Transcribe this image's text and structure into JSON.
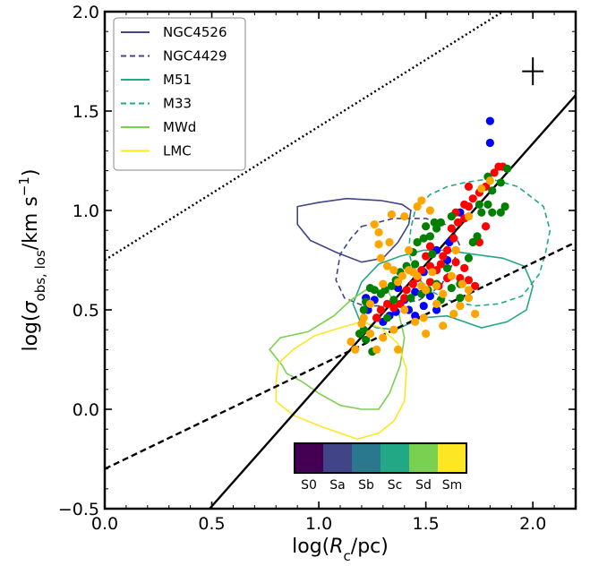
{
  "chart_data": {
    "type": "scatter",
    "xlabel_parts": [
      "log(",
      "R",
      "c",
      "/pc)"
    ],
    "ylabel_parts": [
      "log(",
      "σ",
      "obs, los",
      "/km s",
      "−1",
      ")"
    ],
    "xlim": [
      0.0,
      2.2
    ],
    "ylim": [
      -0.5,
      2.0
    ],
    "xticks": [
      0.0,
      0.5,
      1.0,
      1.5,
      2.0
    ],
    "xtick_labels": [
      "0.0",
      "0.5",
      "1.0",
      "1.5",
      "2.0"
    ],
    "yticks": [
      -0.5,
      0.0,
      0.5,
      1.0,
      1.5,
      2.0
    ],
    "ytick_labels": [
      "−0.5",
      "0.0",
      "0.5",
      "1.0",
      "1.5",
      "2.0"
    ],
    "grid": false,
    "legend_position": "top-left",
    "lines": [
      {
        "style": "solid",
        "points": [
          [
            0.49,
            -0.5
          ],
          [
            2.2,
            1.58
          ]
        ]
      },
      {
        "style": "dashed",
        "points": [
          [
            0.0,
            -0.3
          ],
          [
            2.2,
            0.84
          ]
        ]
      },
      {
        "style": "dotted",
        "points": [
          [
            0.0,
            0.75
          ],
          [
            1.86,
            2.0
          ]
        ]
      }
    ],
    "error_cross": {
      "x": 2.0,
      "y": 1.7,
      "dx": 0.05,
      "dy": 0.07
    },
    "contours": [
      {
        "name": "NGC4526",
        "color": "#414487",
        "dash": "solid",
        "points": [
          [
            0.9,
            1.02
          ],
          [
            1.0,
            1.04
          ],
          [
            1.13,
            1.06
          ],
          [
            1.29,
            1.05
          ],
          [
            1.39,
            1.03
          ],
          [
            1.43,
            1.0
          ],
          [
            1.42,
            0.93
          ],
          [
            1.37,
            0.84
          ],
          [
            1.3,
            0.76
          ],
          [
            1.2,
            0.74
          ],
          [
            1.08,
            0.79
          ],
          [
            0.96,
            0.85
          ],
          [
            0.9,
            0.93
          ],
          [
            0.9,
            1.0
          ]
        ]
      },
      {
        "name": "NGC4429",
        "color": "#414487",
        "dash": "dashed",
        "points": [
          [
            1.2,
            0.92
          ],
          [
            1.35,
            0.96
          ],
          [
            1.5,
            0.96
          ],
          [
            1.62,
            0.92
          ],
          [
            1.66,
            0.82
          ],
          [
            1.62,
            0.72
          ],
          [
            1.57,
            0.62
          ],
          [
            1.47,
            0.55
          ],
          [
            1.33,
            0.52
          ],
          [
            1.21,
            0.52
          ],
          [
            1.12,
            0.56
          ],
          [
            1.08,
            0.65
          ],
          [
            1.1,
            0.78
          ],
          [
            1.15,
            0.86
          ],
          [
            1.2,
            0.92
          ]
        ]
      },
      {
        "name": "M51",
        "color": "#22a884",
        "dash": "solid",
        "points": [
          [
            1.28,
            0.73
          ],
          [
            1.38,
            0.77
          ],
          [
            1.49,
            0.8
          ],
          [
            1.59,
            0.8
          ],
          [
            1.72,
            0.78
          ],
          [
            1.86,
            0.76
          ],
          [
            1.96,
            0.72
          ],
          [
            2.0,
            0.62
          ],
          [
            1.97,
            0.5
          ],
          [
            1.88,
            0.44
          ],
          [
            1.76,
            0.41
          ],
          [
            1.6,
            0.47
          ],
          [
            1.48,
            0.46
          ],
          [
            1.36,
            0.4
          ],
          [
            1.27,
            0.41
          ],
          [
            1.19,
            0.45
          ],
          [
            1.16,
            0.53
          ],
          [
            1.2,
            0.64
          ],
          [
            1.28,
            0.73
          ]
        ]
      },
      {
        "name": "M33",
        "color": "#22a884",
        "dash": "dashed",
        "points": [
          [
            1.45,
            1.0
          ],
          [
            1.52,
            1.08
          ],
          [
            1.6,
            1.12
          ],
          [
            1.68,
            1.14
          ],
          [
            1.8,
            1.16
          ],
          [
            1.93,
            1.12
          ],
          [
            2.05,
            1.02
          ],
          [
            2.08,
            0.9
          ],
          [
            2.06,
            0.79
          ],
          [
            2.03,
            0.68
          ],
          [
            1.95,
            0.57
          ],
          [
            1.84,
            0.53
          ],
          [
            1.73,
            0.52
          ],
          [
            1.6,
            0.55
          ],
          [
            1.5,
            0.61
          ],
          [
            1.44,
            0.7
          ],
          [
            1.42,
            0.8
          ],
          [
            1.43,
            0.91
          ],
          [
            1.45,
            1.0
          ]
        ]
      },
      {
        "name": "MWd",
        "color": "#7ad151",
        "dash": "solid",
        "points": [
          [
            0.83,
            0.22
          ],
          [
            0.77,
            0.3
          ],
          [
            0.82,
            0.36
          ],
          [
            0.95,
            0.39
          ],
          [
            1.07,
            0.47
          ],
          [
            1.15,
            0.55
          ],
          [
            1.22,
            0.6
          ],
          [
            1.32,
            0.6
          ],
          [
            1.37,
            0.5
          ],
          [
            1.4,
            0.36
          ],
          [
            1.38,
            0.22
          ],
          [
            1.33,
            0.08
          ],
          [
            1.28,
            0.0
          ],
          [
            1.2,
            0.0
          ],
          [
            1.1,
            0.02
          ],
          [
            1.0,
            0.08
          ],
          [
            0.92,
            0.14
          ],
          [
            0.85,
            0.18
          ],
          [
            0.83,
            0.22
          ]
        ]
      },
      {
        "name": "LMC",
        "color": "#fde725",
        "dash": "solid",
        "points": [
          [
            0.8,
            0.13
          ],
          [
            0.81,
            0.23
          ],
          [
            0.88,
            0.3
          ],
          [
            0.98,
            0.37
          ],
          [
            1.1,
            0.41
          ],
          [
            1.2,
            0.44
          ],
          [
            1.29,
            0.41
          ],
          [
            1.37,
            0.33
          ],
          [
            1.41,
            0.2
          ],
          [
            1.4,
            0.04
          ],
          [
            1.35,
            -0.06
          ],
          [
            1.28,
            -0.12
          ],
          [
            1.18,
            -0.15
          ],
          [
            1.02,
            -0.09
          ],
          [
            0.88,
            -0.03
          ],
          [
            0.8,
            0.04
          ],
          [
            0.8,
            0.13
          ]
        ]
      }
    ],
    "series": [
      {
        "name": "S0",
        "color": "#440154",
        "points": []
      },
      {
        "name": "Sa",
        "color": "#0000ff",
        "points": [
          [
            1.8,
            1.45
          ],
          [
            1.8,
            1.34
          ],
          [
            1.66,
            0.99
          ],
          [
            1.61,
            0.84
          ],
          [
            1.6,
            0.75
          ],
          [
            1.55,
            0.8
          ],
          [
            1.49,
            0.69
          ],
          [
            1.45,
            0.59
          ],
          [
            1.52,
            0.57
          ],
          [
            1.49,
            0.52
          ],
          [
            1.45,
            0.47
          ],
          [
            1.42,
            0.5
          ],
          [
            1.4,
            0.55
          ],
          [
            1.36,
            0.49
          ],
          [
            1.33,
            0.47
          ],
          [
            1.3,
            0.44
          ],
          [
            1.27,
            0.46
          ],
          [
            1.22,
            0.56
          ],
          [
            1.23,
            0.5
          ],
          [
            1.26,
            0.55
          ],
          [
            1.55,
            0.5
          ],
          [
            1.37,
            0.61
          ]
        ]
      },
      {
        "name": "Sb",
        "color": "#ff0000",
        "points": [
          [
            1.84,
            1.22
          ],
          [
            1.86,
            1.22
          ],
          [
            1.82,
            1.19
          ],
          [
            1.78,
            1.12
          ],
          [
            1.75,
            1.09
          ],
          [
            1.72,
            1.06
          ],
          [
            1.7,
            1.02
          ],
          [
            1.68,
            0.96
          ],
          [
            1.65,
            0.94
          ],
          [
            1.62,
            0.91
          ],
          [
            1.63,
            0.86
          ],
          [
            1.6,
            0.8
          ],
          [
            1.58,
            0.77
          ],
          [
            1.57,
            0.73
          ],
          [
            1.55,
            0.7
          ],
          [
            1.52,
            0.72
          ],
          [
            1.48,
            0.7
          ],
          [
            1.46,
            0.66
          ],
          [
            1.44,
            0.63
          ],
          [
            1.41,
            0.6
          ],
          [
            1.4,
            0.56
          ],
          [
            1.38,
            0.53
          ],
          [
            1.35,
            0.51
          ],
          [
            1.32,
            0.53
          ],
          [
            1.29,
            0.5
          ],
          [
            1.27,
            0.46
          ],
          [
            1.73,
            0.62
          ],
          [
            1.7,
            0.65
          ],
          [
            1.68,
            0.71
          ],
          [
            1.64,
            0.74
          ],
          [
            1.66,
            0.66
          ],
          [
            1.56,
            0.62
          ],
          [
            1.52,
            0.64
          ],
          [
            1.5,
            0.77
          ],
          [
            1.52,
            0.82
          ],
          [
            1.64,
            0.99
          ],
          [
            1.68,
            1.03
          ],
          [
            1.7,
            1.12
          ],
          [
            1.78,
            0.92
          ],
          [
            1.75,
            0.84
          ],
          [
            1.6,
            0.66
          ]
        ]
      },
      {
        "name": "Sc",
        "color": "#008000",
        "points": [
          [
            1.88,
            1.21
          ],
          [
            1.85,
            1.14
          ],
          [
            1.81,
            1.1
          ],
          [
            1.79,
            1.03
          ],
          [
            1.76,
            0.99
          ],
          [
            1.81,
            0.99
          ],
          [
            1.85,
            0.99
          ],
          [
            1.87,
            1.02
          ],
          [
            1.75,
            1.03
          ],
          [
            1.62,
            0.97
          ],
          [
            1.57,
            0.94
          ],
          [
            1.55,
            0.91
          ],
          [
            1.52,
            0.87
          ],
          [
            1.49,
            0.86
          ],
          [
            1.46,
            0.84
          ],
          [
            1.44,
            0.79
          ],
          [
            1.41,
            0.72
          ],
          [
            1.38,
            0.69
          ],
          [
            1.36,
            0.65
          ],
          [
            1.34,
            0.62
          ],
          [
            1.31,
            0.6
          ],
          [
            1.29,
            0.58
          ],
          [
            1.26,
            0.6
          ],
          [
            1.24,
            0.61
          ],
          [
            1.22,
            0.54
          ],
          [
            1.21,
            0.5
          ],
          [
            1.19,
            0.38
          ],
          [
            1.22,
            0.35
          ],
          [
            1.25,
            0.29
          ],
          [
            1.21,
            0.4
          ],
          [
            1.32,
            0.46
          ],
          [
            1.35,
            0.55
          ],
          [
            1.43,
            0.56
          ],
          [
            1.48,
            0.58
          ],
          [
            1.51,
            0.6
          ],
          [
            1.55,
            0.63
          ],
          [
            1.62,
            0.61
          ],
          [
            1.66,
            0.63
          ],
          [
            1.66,
            0.56
          ],
          [
            1.57,
            0.55
          ],
          [
            1.45,
            0.73
          ],
          [
            1.53,
            0.78
          ],
          [
            1.6,
            0.71
          ],
          [
            1.7,
            0.76
          ],
          [
            1.72,
            0.84
          ],
          [
            1.74,
            0.87
          ],
          [
            1.79,
            1.17
          ],
          [
            1.5,
            0.92
          ],
          [
            1.54,
            0.94
          ]
        ]
      },
      {
        "name": "Sd",
        "color": "#7ad151",
        "points": []
      },
      {
        "name": "Sm",
        "color": "#ffa500",
        "points": [
          [
            1.8,
            1.15
          ],
          [
            1.76,
            1.11
          ],
          [
            1.7,
            0.97
          ],
          [
            1.64,
            0.8
          ],
          [
            1.62,
            0.67
          ],
          [
            1.67,
            0.63
          ],
          [
            1.7,
            0.6
          ],
          [
            1.58,
            0.58
          ],
          [
            1.5,
            0.6
          ],
          [
            1.48,
            0.62
          ],
          [
            1.46,
            0.67
          ],
          [
            1.44,
            0.69
          ],
          [
            1.42,
            0.7
          ],
          [
            1.39,
            0.67
          ],
          [
            1.37,
            0.64
          ],
          [
            1.35,
            0.7
          ],
          [
            1.32,
            0.72
          ],
          [
            1.29,
            0.76
          ],
          [
            1.28,
            0.83
          ],
          [
            1.28,
            0.89
          ],
          [
            1.26,
            0.93
          ],
          [
            1.34,
            0.98
          ],
          [
            1.4,
            0.97
          ],
          [
            1.46,
            1.02
          ],
          [
            1.48,
            1.05
          ],
          [
            1.52,
            1.0
          ],
          [
            1.42,
            0.8
          ],
          [
            1.33,
            0.84
          ],
          [
            1.3,
            0.63
          ],
          [
            1.24,
            0.53
          ],
          [
            1.21,
            0.46
          ],
          [
            1.2,
            0.43
          ],
          [
            1.24,
            0.38
          ],
          [
            1.3,
            0.36
          ],
          [
            1.35,
            0.4
          ],
          [
            1.37,
            0.3
          ],
          [
            1.27,
            0.3
          ],
          [
            1.17,
            0.3
          ],
          [
            1.15,
            0.34
          ],
          [
            1.4,
            0.5
          ],
          [
            1.45,
            0.44
          ],
          [
            1.5,
            0.38
          ],
          [
            1.49,
            0.46
          ],
          [
            1.55,
            0.53
          ],
          [
            1.58,
            0.42
          ],
          [
            1.63,
            0.48
          ],
          [
            1.66,
            0.52
          ],
          [
            1.7,
            0.56
          ],
          [
            1.73,
            0.48
          ],
          [
            1.55,
            0.62
          ],
          [
            1.53,
            0.69
          ]
        ]
      }
    ],
    "legend": [
      {
        "label": "NGC4526",
        "color": "#414487",
        "dash": "solid"
      },
      {
        "label": "NGC4429",
        "color": "#414487",
        "dash": "dashed"
      },
      {
        "label": "M51",
        "color": "#22a884",
        "dash": "solid"
      },
      {
        "label": "M33",
        "color": "#22a884",
        "dash": "dashed"
      },
      {
        "label": "MWd",
        "color": "#7ad151",
        "dash": "solid"
      },
      {
        "label": "LMC",
        "color": "#fde725",
        "dash": "solid"
      }
    ],
    "colorbar": [
      {
        "label": "S0",
        "color": "#440154"
      },
      {
        "label": "Sa",
        "color": "#414487"
      },
      {
        "label": "Sb",
        "color": "#2a788e"
      },
      {
        "label": "Sc",
        "color": "#22a884"
      },
      {
        "label": "Sd",
        "color": "#7ad151"
      },
      {
        "label": "Sm",
        "color": "#fde725"
      }
    ]
  }
}
